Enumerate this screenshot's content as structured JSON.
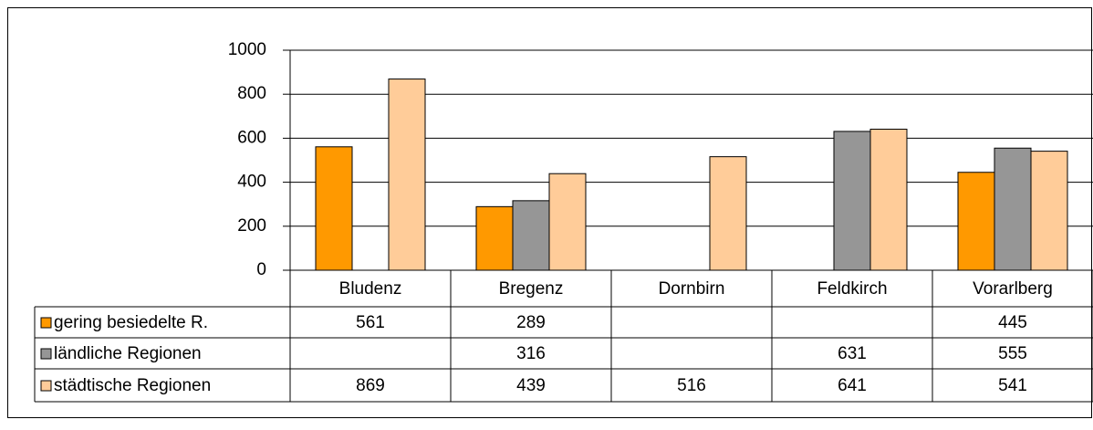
{
  "chart_data": {
    "type": "bar",
    "categories": [
      "Bludenz",
      "Bregenz",
      "Dornbirn",
      "Feldkirch",
      "Vorarlberg"
    ],
    "series": [
      {
        "name": "gering besiedelte R.",
        "color": "#ff9900",
        "values": [
          561,
          289,
          null,
          null,
          445
        ]
      },
      {
        "name": "ländliche Regionen",
        "color": "#969696",
        "values": [
          null,
          316,
          null,
          631,
          555
        ]
      },
      {
        "name": "städtische Regionen",
        "color": "#ffcc99",
        "values": [
          869,
          439,
          516,
          641,
          541
        ]
      }
    ],
    "ylim": [
      0,
      1000
    ],
    "yticks": [
      0,
      200,
      400,
      600,
      800,
      1000
    ],
    "grid": true
  }
}
